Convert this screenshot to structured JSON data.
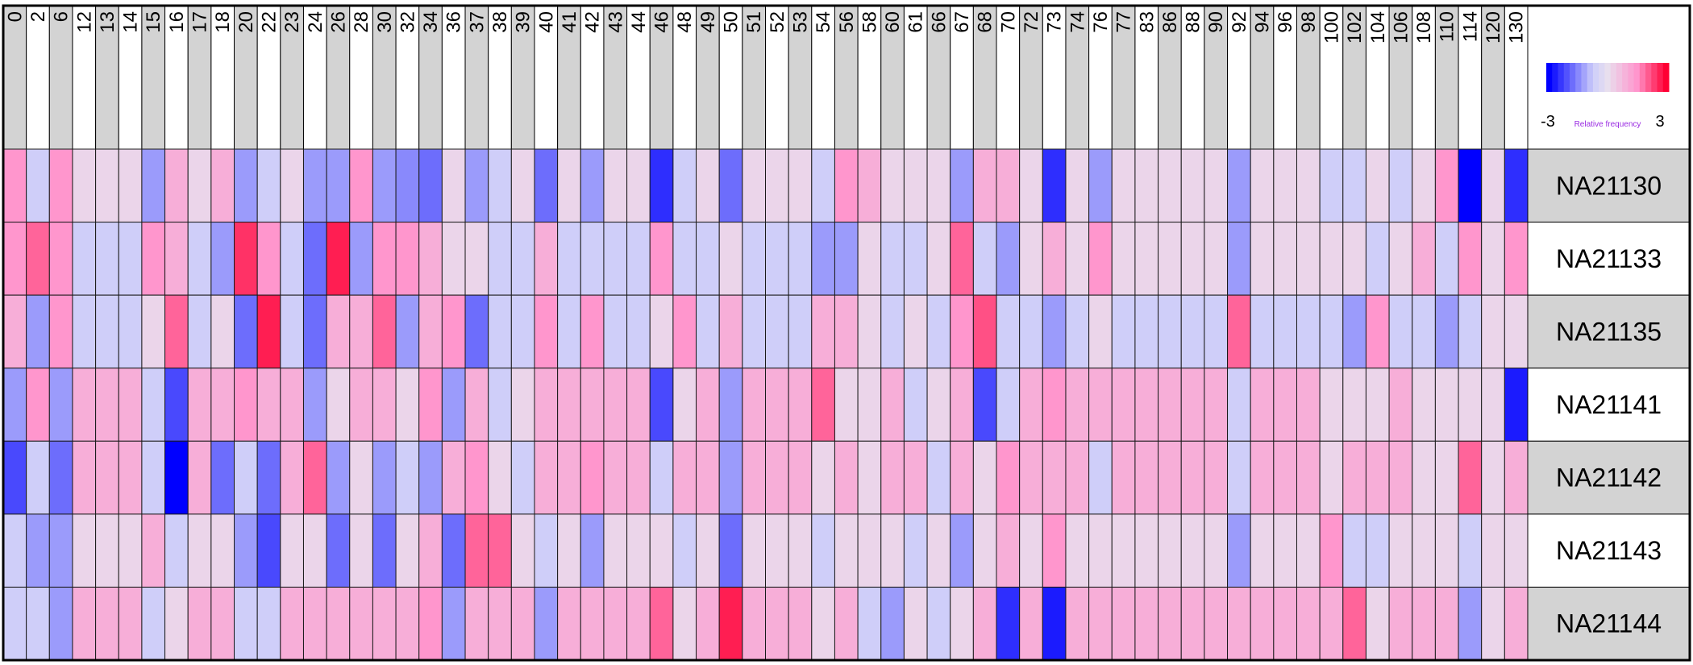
{
  "chart_data": {
    "type": "heatmap",
    "columns": [
      "0",
      "2",
      "6",
      "12",
      "13",
      "14",
      "15",
      "16",
      "17",
      "18",
      "20",
      "22",
      "23",
      "24",
      "26",
      "28",
      "30",
      "32",
      "34",
      "36",
      "37",
      "38",
      "39",
      "40",
      "41",
      "42",
      "43",
      "44",
      "46",
      "48",
      "49",
      "50",
      "51",
      "52",
      "53",
      "54",
      "56",
      "58",
      "60",
      "61",
      "66",
      "67",
      "68",
      "70",
      "72",
      "73",
      "74",
      "76",
      "77",
      "83",
      "86",
      "88",
      "90",
      "92",
      "94",
      "96",
      "98",
      "100",
      "102",
      "104",
      "106",
      "108",
      "110",
      "114",
      "120",
      "130"
    ],
    "rows": [
      "NA21130",
      "NA21133",
      "NA21135",
      "NA21141",
      "NA21142",
      "NA21143",
      "NA21144"
    ],
    "values": [
      [
        1.5,
        -0.7,
        1.5,
        0.2,
        0.2,
        0.2,
        -1.3,
        1.0,
        0.2,
        1.0,
        -1.3,
        -0.7,
        0.2,
        -1.3,
        -1.3,
        1.5,
        -1.3,
        -1.5,
        -1.8,
        0.2,
        -1.3,
        -0.7,
        0.2,
        -1.8,
        0.2,
        -1.3,
        0.2,
        0.2,
        -2.5,
        -0.7,
        0.2,
        -1.8,
        0.2,
        0.2,
        0.2,
        -0.7,
        1.5,
        1.0,
        0.2,
        0.2,
        0.2,
        -1.3,
        1.0,
        1.0,
        0.2,
        -2.5,
        0.2,
        -1.3,
        0.2,
        0.2,
        0.2,
        0.2,
        0.2,
        -1.3,
        0.2,
        0.2,
        0.2,
        -0.7,
        -0.7,
        0.2,
        -0.7,
        0.2,
        1.5,
        -3.0,
        0.2,
        -2.5
      ],
      [
        1.5,
        2.0,
        1.5,
        -0.7,
        -0.7,
        -0.7,
        1.5,
        1.0,
        -0.7,
        -1.3,
        2.5,
        1.5,
        -0.7,
        -1.8,
        2.7,
        -1.3,
        1.5,
        1.5,
        1.0,
        0.2,
        0.2,
        -0.7,
        -0.7,
        1.0,
        -0.7,
        -0.7,
        -0.7,
        -0.7,
        1.5,
        -0.7,
        -0.7,
        0.2,
        -0.7,
        -0.7,
        -0.7,
        -1.3,
        -1.3,
        0.2,
        -0.7,
        -0.7,
        0.2,
        2.0,
        -0.7,
        -1.3,
        0.2,
        1.0,
        0.2,
        1.5,
        0.2,
        0.2,
        0.2,
        0.2,
        0.2,
        -1.3,
        0.2,
        0.2,
        0.2,
        0.2,
        0.2,
        -0.7,
        0.2,
        1.0,
        -0.7,
        1.5,
        0.2,
        1.5
      ],
      [
        1.0,
        -1.3,
        1.5,
        -0.7,
        -0.7,
        -0.7,
        0.2,
        2.0,
        -0.7,
        0.2,
        -1.8,
        2.7,
        -0.7,
        -1.8,
        1.0,
        1.0,
        2.0,
        -1.3,
        1.0,
        1.5,
        -1.8,
        -0.7,
        -0.7,
        1.5,
        -0.7,
        1.5,
        -0.7,
        -0.7,
        0.2,
        1.5,
        -0.7,
        1.0,
        -0.7,
        -0.7,
        -0.7,
        1.0,
        1.0,
        0.2,
        -0.7,
        0.2,
        -0.7,
        1.5,
        2.2,
        -0.7,
        -0.7,
        -1.3,
        -0.7,
        0.2,
        -0.7,
        -0.7,
        -0.7,
        -0.7,
        -0.7,
        2.0,
        -0.7,
        -0.7,
        -0.7,
        -0.7,
        -1.3,
        1.5,
        -0.7,
        -0.7,
        -1.3,
        -0.7,
        0.2,
        0.2
      ],
      [
        -1.3,
        1.5,
        -1.3,
        1.0,
        1.0,
        1.0,
        -0.7,
        -2.2,
        1.0,
        1.0,
        1.5,
        1.0,
        1.0,
        -1.3,
        0.2,
        1.0,
        1.0,
        0.2,
        1.5,
        -1.3,
        1.0,
        -0.7,
        0.2,
        1.0,
        1.0,
        1.0,
        1.0,
        1.0,
        -2.2,
        0.2,
        1.0,
        -1.3,
        1.0,
        1.0,
        1.0,
        2.0,
        0.2,
        0.2,
        1.0,
        -0.7,
        0.2,
        1.0,
        -2.2,
        -0.7,
        1.0,
        1.5,
        1.0,
        1.0,
        1.0,
        1.0,
        1.0,
        1.0,
        1.0,
        -0.7,
        1.0,
        1.0,
        1.0,
        0.2,
        0.2,
        0.2,
        1.0,
        0.2,
        0.2,
        0.2,
        0.2,
        -2.7
      ],
      [
        -2.2,
        -0.7,
        -1.8,
        1.0,
        1.0,
        1.0,
        -0.7,
        -3.0,
        1.0,
        -1.8,
        -0.7,
        -1.8,
        1.0,
        2.0,
        -1.3,
        0.2,
        -1.3,
        -0.7,
        -1.3,
        1.0,
        1.5,
        0.2,
        -0.7,
        1.0,
        1.0,
        1.5,
        1.0,
        1.0,
        -0.7,
        1.0,
        1.0,
        -1.3,
        1.0,
        1.0,
        1.0,
        0.2,
        1.0,
        0.2,
        1.0,
        1.0,
        -0.7,
        1.0,
        0.2,
        1.5,
        1.0,
        1.0,
        1.0,
        -0.7,
        1.0,
        1.0,
        1.0,
        1.0,
        1.0,
        -0.7,
        1.0,
        1.0,
        1.0,
        0.2,
        1.0,
        1.0,
        1.0,
        0.2,
        0.2,
        2.0,
        0.2,
        1.0
      ],
      [
        -0.7,
        -1.3,
        -1.3,
        0.2,
        0.2,
        0.2,
        1.0,
        -0.7,
        0.2,
        0.2,
        -1.3,
        -2.2,
        0.2,
        0.2,
        -1.8,
        0.2,
        -1.8,
        0.2,
        1.0,
        -1.8,
        2.0,
        2.0,
        0.2,
        -0.7,
        0.2,
        -1.3,
        0.2,
        0.2,
        0.2,
        -0.7,
        0.2,
        -1.8,
        0.2,
        0.2,
        0.2,
        -0.7,
        0.2,
        0.2,
        0.2,
        -0.7,
        0.2,
        -1.3,
        0.2,
        1.0,
        0.2,
        1.5,
        0.2,
        0.2,
        0.2,
        0.2,
        0.2,
        0.2,
        0.2,
        -1.3,
        0.2,
        0.2,
        0.2,
        1.5,
        -0.7,
        -0.7,
        0.2,
        0.2,
        0.2,
        -0.7,
        0.2,
        0.2
      ],
      [
        -0.7,
        -0.7,
        -1.3,
        1.0,
        1.0,
        1.0,
        -0.7,
        0.2,
        1.0,
        1.0,
        -0.7,
        -0.7,
        1.0,
        1.0,
        1.0,
        1.0,
        1.0,
        1.0,
        1.5,
        -1.3,
        1.0,
        1.0,
        1.0,
        -1.3,
        1.0,
        1.0,
        1.0,
        1.0,
        2.0,
        0.2,
        1.0,
        2.7,
        1.0,
        1.0,
        1.0,
        0.2,
        1.0,
        -0.7,
        -1.3,
        0.2,
        -0.7,
        0.2,
        1.0,
        -2.5,
        1.0,
        -2.7,
        1.0,
        1.0,
        1.0,
        1.0,
        1.0,
        1.0,
        1.0,
        1.0,
        1.0,
        1.0,
        1.0,
        1.0,
        2.0,
        0.2,
        1.0,
        1.0,
        1.0,
        -1.3,
        0.2,
        1.0
      ]
    ],
    "legend": {
      "title": "Relative frequency",
      "min_label": "-3",
      "max_label": "3",
      "range": [
        -3,
        3
      ],
      "placement": "top-right",
      "low_color": "#0000ff",
      "mid_color": "#e8dfee",
      "high_color": "#ff0033"
    },
    "header_band_colors": [
      "#d3d3d3",
      "#ffffff"
    ],
    "grid": true
  }
}
